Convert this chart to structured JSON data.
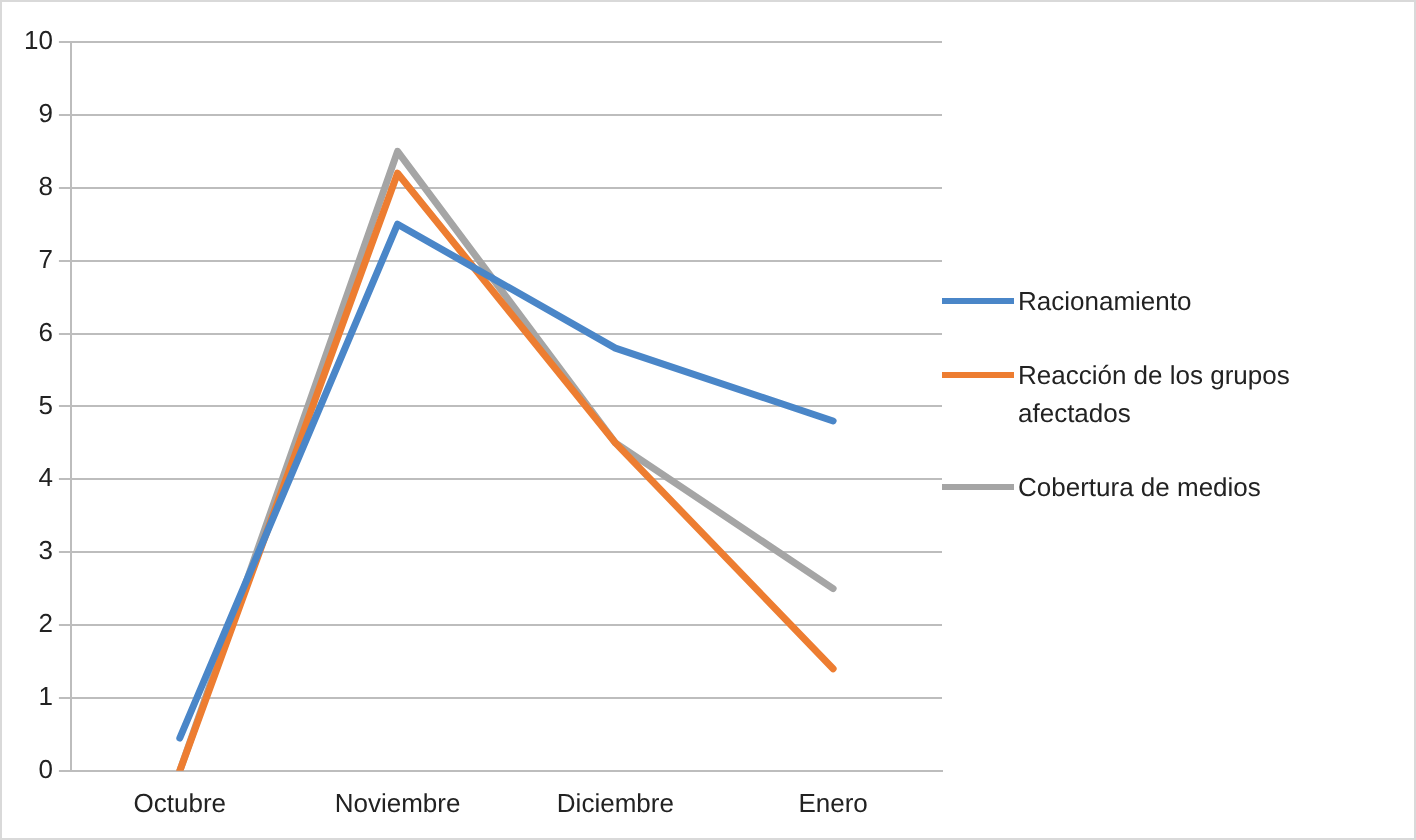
{
  "chart_data": {
    "type": "line",
    "categories": [
      "Octubre",
      "Noviembre",
      "Diciembre",
      "Enero"
    ],
    "series": [
      {
        "name": "Racionamiento",
        "color": "#4a86c8",
        "values": [
          0.45,
          7.5,
          5.8,
          4.8
        ]
      },
      {
        "name": "Reacción de los grupos afectados",
        "color": "#ed7d31",
        "values": [
          0,
          8.2,
          4.5,
          1.4
        ]
      },
      {
        "name": "Cobertura de medios",
        "color": "#a5a5a5",
        "values": [
          0,
          8.5,
          4.5,
          2.5
        ]
      }
    ],
    "ylim": [
      0,
      10
    ],
    "yticks": [
      0,
      1,
      2,
      3,
      4,
      5,
      6,
      7,
      8,
      9,
      10
    ],
    "grid": "y",
    "legend": "right",
    "marker": "none",
    "line_style": "solid"
  }
}
